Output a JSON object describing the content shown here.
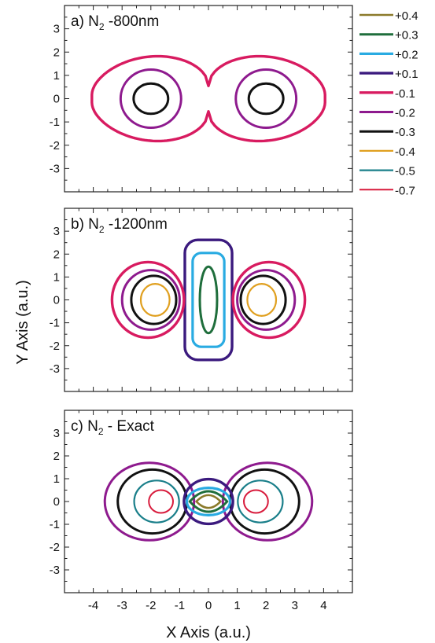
{
  "chart_data": {
    "type": "contour",
    "xlabel": "X Axis  (a.u.)",
    "ylabel": "Y Axis    (a.u.)",
    "xlim": [
      -5,
      5
    ],
    "ylim": [
      -4,
      4
    ],
    "xticks": [
      -4,
      -3,
      -2,
      -1,
      0,
      1,
      2,
      3,
      4
    ],
    "yticks": [
      -3,
      -2,
      -1,
      0,
      1,
      2,
      3
    ],
    "legend_position": "right of top panel",
    "legend": [
      {
        "label": "+0.4",
        "color": "#8b7a2a"
      },
      {
        "label": "+0.3",
        "color": "#1f6e3c"
      },
      {
        "label": "+0.2",
        "color": "#29abe2"
      },
      {
        "label": "+0.1",
        "color": "#3b1a7e"
      },
      {
        "label": "-0.1",
        "color": "#d81b60"
      },
      {
        "label": "-0.2",
        "color": "#8e1a8e"
      },
      {
        "label": "-0.3",
        "color": "#111111"
      },
      {
        "label": "-0.4",
        "color": "#e0a020"
      },
      {
        "label": "-0.5",
        "color": "#1a7f8a"
      },
      {
        "label": "-0.7",
        "color": "#d81b3c"
      }
    ],
    "panels": [
      {
        "label": "a) N",
        "sub": "2",
        "rest": " -800nm",
        "contours": [
          {
            "level": "-0.1",
            "shape": "dumbbell",
            "cx": 0,
            "cy": 0,
            "rx": 4.05,
            "ry": 1.9,
            "neck": 0.55
          },
          {
            "level": "-0.2",
            "shape": "ellipse",
            "cx": -2.0,
            "cy": 0,
            "rx": 1.05,
            "ry": 1.25
          },
          {
            "level": "-0.2",
            "shape": "ellipse",
            "cx": 2.0,
            "cy": 0,
            "rx": 1.05,
            "ry": 1.25
          },
          {
            "level": "-0.3",
            "shape": "ellipse",
            "cx": -2.0,
            "cy": 0,
            "rx": 0.6,
            "ry": 0.65
          },
          {
            "level": "-0.3",
            "shape": "ellipse",
            "cx": 2.0,
            "cy": 0,
            "rx": 0.6,
            "ry": 0.65
          }
        ]
      },
      {
        "label": "b) N",
        "sub": "2",
        "rest": " -1200nm",
        "contours": [
          {
            "level": "+0.1",
            "shape": "rect",
            "cx": 0,
            "cy": 0,
            "rx": 0.82,
            "ry": 2.62
          },
          {
            "level": "+0.2",
            "shape": "rect",
            "cx": 0,
            "cy": 0,
            "rx": 0.55,
            "ry": 2.05
          },
          {
            "level": "+0.3",
            "shape": "ellipse",
            "cx": 0,
            "cy": 0,
            "rx": 0.3,
            "ry": 1.45
          },
          {
            "level": "-0.1",
            "shape": "ellipse",
            "cx": -2.1,
            "cy": 0,
            "rx": 1.25,
            "ry": 1.65
          },
          {
            "level": "-0.1",
            "shape": "ellipse",
            "cx": 2.1,
            "cy": 0,
            "rx": 1.25,
            "ry": 1.65
          },
          {
            "level": "-0.2",
            "shape": "ellipse",
            "cx": -2.0,
            "cy": 0,
            "rx": 1.0,
            "ry": 1.3
          },
          {
            "level": "-0.2",
            "shape": "ellipse",
            "cx": 2.0,
            "cy": 0,
            "rx": 1.0,
            "ry": 1.3
          },
          {
            "level": "-0.3",
            "shape": "ellipse",
            "cx": -1.9,
            "cy": 0,
            "rx": 0.78,
            "ry": 1.05
          },
          {
            "level": "-0.3",
            "shape": "ellipse",
            "cx": 1.9,
            "cy": 0,
            "rx": 0.78,
            "ry": 1.05
          },
          {
            "level": "-0.4",
            "shape": "ellipse",
            "cx": -1.85,
            "cy": 0,
            "rx": 0.5,
            "ry": 0.7
          },
          {
            "level": "-0.4",
            "shape": "ellipse",
            "cx": 1.85,
            "cy": 0,
            "rx": 0.5,
            "ry": 0.7
          }
        ]
      },
      {
        "label": "c) N",
        "sub": "2",
        "rest": " - Exact",
        "contours": [
          {
            "level": "-0.2",
            "shape": "ellipse",
            "cx": -2.05,
            "cy": 0,
            "rx": 1.55,
            "ry": 1.7
          },
          {
            "level": "-0.2",
            "shape": "ellipse",
            "cx": 2.05,
            "cy": 0,
            "rx": 1.55,
            "ry": 1.7
          },
          {
            "level": "-0.3",
            "shape": "ellipse",
            "cx": -1.95,
            "cy": 0,
            "rx": 1.2,
            "ry": 1.4
          },
          {
            "level": "-0.3",
            "shape": "ellipse",
            "cx": 1.95,
            "cy": 0,
            "rx": 1.2,
            "ry": 1.4
          },
          {
            "level": "-0.5",
            "shape": "ellipse",
            "cx": -1.8,
            "cy": 0,
            "rx": 0.78,
            "ry": 0.92
          },
          {
            "level": "-0.5",
            "shape": "ellipse",
            "cx": 1.8,
            "cy": 0,
            "rx": 0.78,
            "ry": 0.92
          },
          {
            "level": "-0.7",
            "shape": "ellipse",
            "cx": -1.65,
            "cy": 0,
            "rx": 0.42,
            "ry": 0.5
          },
          {
            "level": "-0.7",
            "shape": "ellipse",
            "cx": 1.65,
            "cy": 0,
            "rx": 0.42,
            "ry": 0.5
          },
          {
            "level": "+0.1",
            "shape": "ellipse",
            "cx": 0,
            "cy": 0,
            "rx": 0.85,
            "ry": 0.98
          },
          {
            "level": "+0.2",
            "shape": "ellipse",
            "cx": 0,
            "cy": 0,
            "rx": 0.75,
            "ry": 0.6
          },
          {
            "level": "+0.3",
            "shape": "lens",
            "cx": 0,
            "cy": 0,
            "rx": 0.65,
            "ry": 0.45
          },
          {
            "level": "+0.4",
            "shape": "lens",
            "cx": 0,
            "cy": 0,
            "rx": 0.42,
            "ry": 0.28
          }
        ]
      }
    ]
  }
}
